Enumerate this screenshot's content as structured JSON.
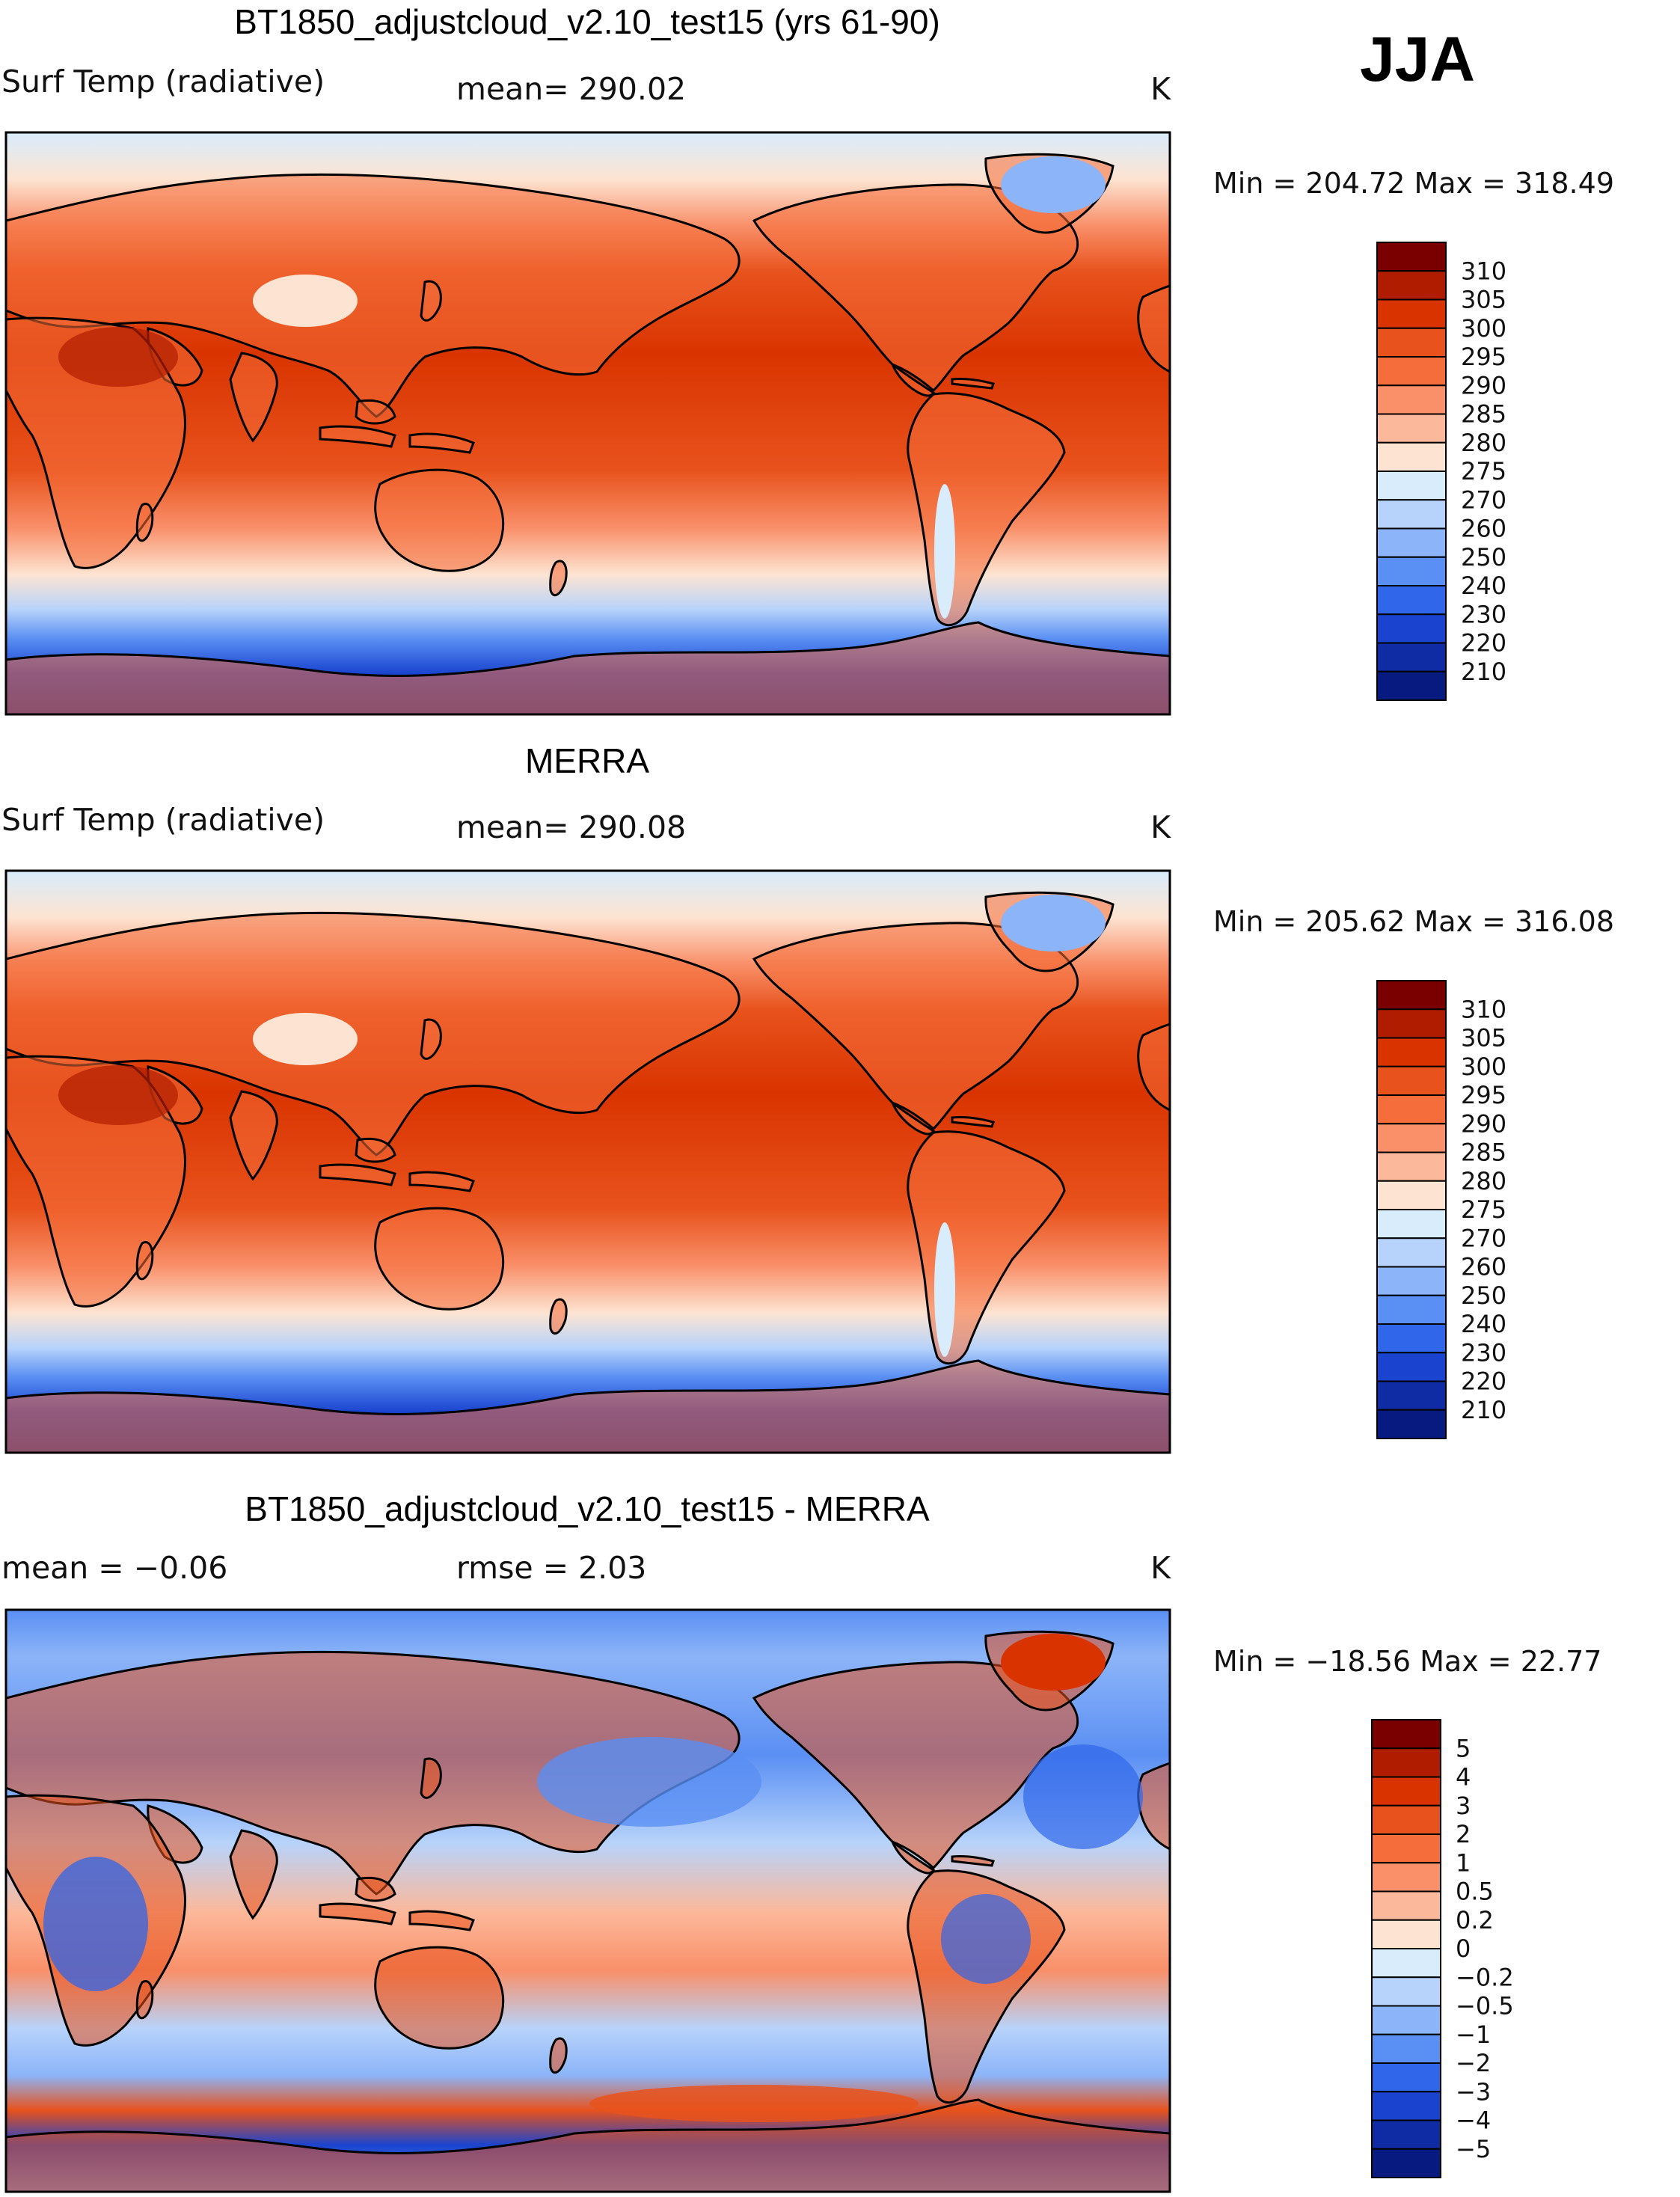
{
  "season": "JJA",
  "panels": [
    {
      "title": "BT1850_adjustcloud_v2.10_test15 (yrs 61-90)",
      "left_label": "Surf Temp (radiative)",
      "center_label": "mean= 290.02",
      "units": "K",
      "minmax": "Min = 204.72 Max = 318.49",
      "kind": "absolute"
    },
    {
      "title": "MERRA",
      "left_label": "Surf Temp (radiative)",
      "center_label": "mean= 290.08",
      "units": "K",
      "minmax": "Min = 205.62 Max = 316.08",
      "kind": "absolute"
    },
    {
      "title": "BT1850_adjustcloud_v2.10_test15 - MERRA",
      "left_label": "mean =   −0.06",
      "center_label": "rmse =    2.03",
      "units": "K",
      "minmax": "Min = −18.56 Max =  22.77",
      "kind": "difference"
    }
  ],
  "colorbars": {
    "absolute": {
      "labels": [
        "310",
        "305",
        "300",
        "295",
        "290",
        "285",
        "280",
        "275",
        "270",
        "260",
        "250",
        "240",
        "230",
        "220",
        "210"
      ],
      "colors": [
        "#7a0000",
        "#b01c00",
        "#d93400",
        "#e8521c",
        "#f46d3b",
        "#f9906a",
        "#fcb89a",
        "#fde4d2",
        "#d8ecfc",
        "#b7d3fb",
        "#8cb4f8",
        "#5a8ff3",
        "#2f66ea",
        "#1a44cf",
        "#0f2ca5",
        "#061a80"
      ]
    },
    "difference": {
      "labels": [
        "5",
        "4",
        "3",
        "2",
        "1",
        "0.5",
        "0.2",
        "0",
        "−0.2",
        "−0.5",
        "−1",
        "−2",
        "−3",
        "−4",
        "−5"
      ],
      "colors": [
        "#7a0000",
        "#b01c00",
        "#d93400",
        "#e8521c",
        "#f46d3b",
        "#f9906a",
        "#fcb89a",
        "#fde4d2",
        "#d8ecfc",
        "#b7d3fb",
        "#8cb4f8",
        "#5a8ff3",
        "#2f66ea",
        "#1a44cf",
        "#0f2ca5",
        "#061a80"
      ]
    }
  }
}
